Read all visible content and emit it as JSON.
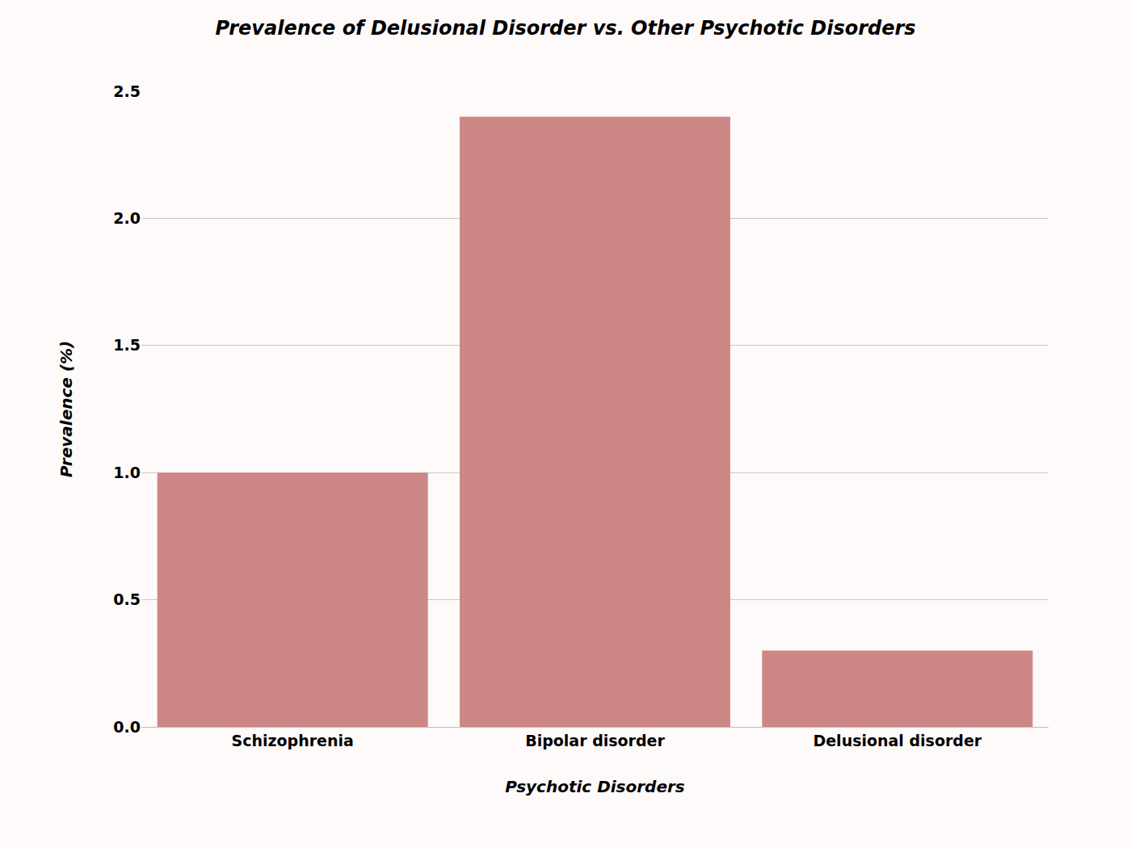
{
  "chart_data": {
    "type": "bar",
    "title": "Prevalence of Delusional Disorder vs. Other Psychotic Disorders",
    "x_label": "Psychotic Disorders",
    "y_label": "Prevalence (%)",
    "categories": [
      "Schizophrenia",
      "Bipolar disorder",
      "Delusional disorder"
    ],
    "values": [
      1.0,
      2.4,
      0.3
    ],
    "color": "#cd8786",
    "ylim": [
      0,
      2.5
    ],
    "yticks": [
      {
        "value": 0,
        "label": "0.0"
      },
      0.5,
      {
        "value": 1,
        "label": "1.0"
      },
      1.5,
      {
        "value": 2,
        "label": "2.0"
      },
      2.5
    ],
    "grid": true
  }
}
